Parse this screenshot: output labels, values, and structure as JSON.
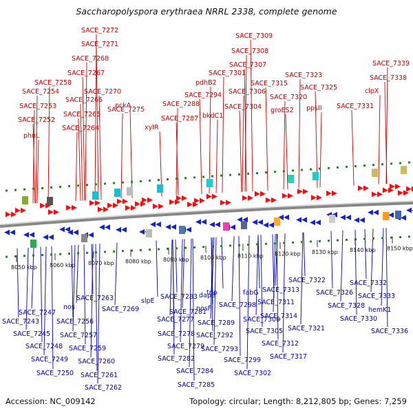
{
  "title": "Saccharopolyspora erythraea NRRL 2338, complete genome",
  "footer": {
    "accession": "Accession: NC_009142",
    "summary": "Topology: circular; Length: 8,212,805 bp; Genes: 7,259"
  },
  "colors": {
    "forward": "#ee1111",
    "reverse": "#1122dd",
    "top_label": "#cc0000",
    "bottom_label": "#0000bb",
    "tick": "#228822",
    "backbone": "#888888"
  },
  "ticks": [
    "8050 kbp",
    "8060 kbp",
    "8070 kbp",
    "8080 kbp",
    "8090 kbp",
    "8100 kbp",
    "8110 kbp",
    "8120 kbp",
    "8130 kbp",
    "8140 kbp",
    "8150 kbp"
  ],
  "top_labels": [
    "SACE_7272",
    "SACE_7271",
    "SACE_7268",
    "SACE_7267",
    "SACE_7258",
    "SACE_7270",
    "SACE_7254",
    "SACE_7266",
    "SACE_7253",
    "SACE_7265",
    "SACE_7275",
    "SACE_7252",
    "SACE_7264",
    "pckA",
    "phnL",
    "xylR",
    "SACE_7288",
    "SACE_7287",
    "pdhB2",
    "SACE_7294",
    "bkdC1",
    "SACE_7309",
    "SACE_7308",
    "SACE_7307",
    "SACE_7301",
    "SACE_7315",
    "SACE_7306",
    "SACE_7304",
    "SACE_7320",
    "groES2",
    "SACE_7323",
    "SACE_7325",
    "ppsII",
    "SACE_7331",
    "SACE_7339",
    "SACE_7338",
    "clpX"
  ],
  "bottom_labels": [
    "SACE_7247",
    "SACE_7243",
    "SACE_7245",
    "SACE_7248",
    "SACE_7249",
    "SACE_7250",
    "nos",
    "SACE_7256",
    "SACE_7257",
    "SACE_7259",
    "SACE_7260",
    "SACE_7261",
    "SACE_7262",
    "SACE_7263",
    "SACE_7269",
    "slpE",
    "SACE_7277",
    "SACE_7278",
    "SACE_7279",
    "SACE_7282",
    "SACE_7281",
    "SACE_7283",
    "SACE_7284",
    "SACE_7285",
    "dapE",
    "nosF",
    "SACE_7289",
    "SACE_7292",
    "SACE_7293",
    "tnp",
    "SACE_7298",
    "fabG",
    "SACE_7300",
    "SACE_7299",
    "SACE_7302",
    "SACE_7305",
    "SACE_7313",
    "SACE_7311",
    "SACE_7314",
    "SACE_7312",
    "SACE_7317",
    "SACE_7322",
    "SACE_7321",
    "SACE_7326",
    "SACE_7328",
    "SACE_7332",
    "SACE_7333",
    "SACE_7330",
    "hemK1",
    "SACE_7336"
  ]
}
